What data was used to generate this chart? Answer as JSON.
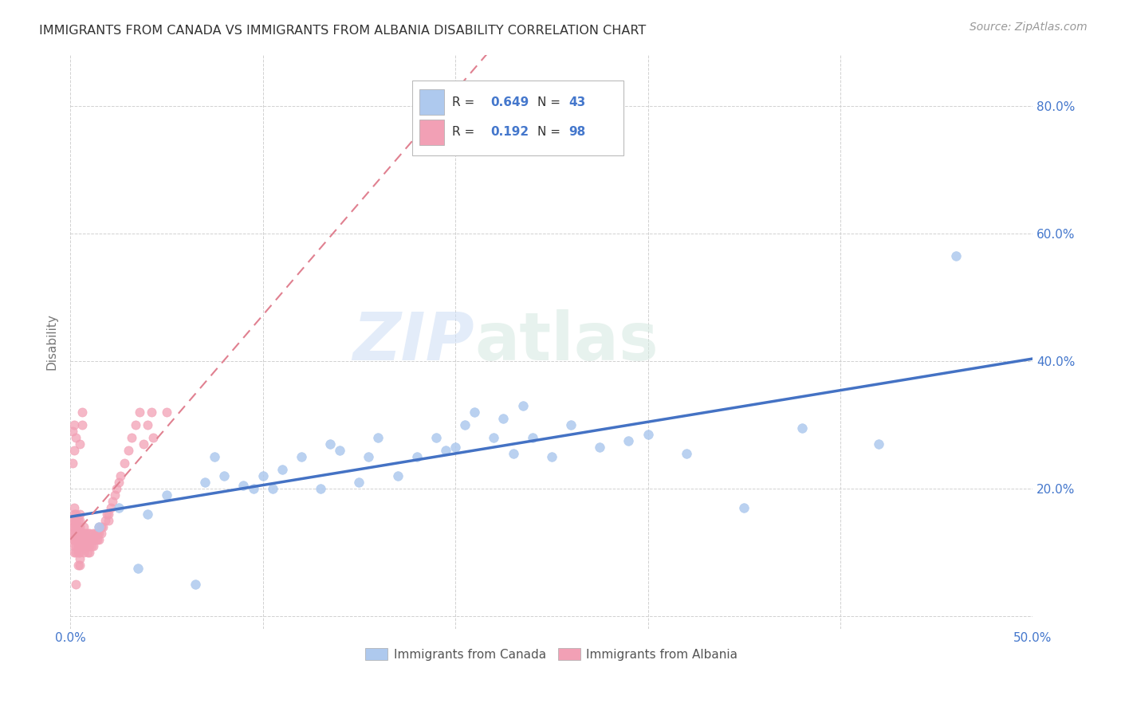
{
  "title": "IMMIGRANTS FROM CANADA VS IMMIGRANTS FROM ALBANIA DISABILITY CORRELATION CHART",
  "source": "Source: ZipAtlas.com",
  "ylabel": "Disability",
  "xlim": [
    0.0,
    0.5
  ],
  "ylim": [
    -0.02,
    0.88
  ],
  "xticks": [
    0.0,
    0.1,
    0.2,
    0.3,
    0.4,
    0.5
  ],
  "yticks": [
    0.0,
    0.2,
    0.4,
    0.6,
    0.8
  ],
  "xtick_labels_left": [
    "0.0%",
    "",
    "",
    "",
    "",
    "50.0%"
  ],
  "ytick_labels_right": [
    "",
    "20.0%",
    "40.0%",
    "60.0%",
    "80.0%"
  ],
  "canada_color": "#aec9ee",
  "albania_color": "#f2a0b5",
  "canada_R": 0.649,
  "canada_N": 43,
  "albania_R": 0.192,
  "albania_N": 98,
  "canada_line_color": "#4472c4",
  "albania_line_color": "#e08090",
  "watermark_zip": "ZIP",
  "watermark_atlas": "atlas",
  "canada_scatter_x": [
    0.015,
    0.025,
    0.035,
    0.04,
    0.05,
    0.065,
    0.07,
    0.075,
    0.08,
    0.09,
    0.095,
    0.1,
    0.105,
    0.11,
    0.12,
    0.13,
    0.135,
    0.14,
    0.15,
    0.155,
    0.16,
    0.17,
    0.18,
    0.19,
    0.195,
    0.2,
    0.205,
    0.21,
    0.22,
    0.225,
    0.23,
    0.235,
    0.24,
    0.25,
    0.26,
    0.275,
    0.29,
    0.3,
    0.32,
    0.35,
    0.38,
    0.42,
    0.46
  ],
  "canada_scatter_y": [
    0.14,
    0.17,
    0.075,
    0.16,
    0.19,
    0.05,
    0.21,
    0.25,
    0.22,
    0.205,
    0.2,
    0.22,
    0.2,
    0.23,
    0.25,
    0.2,
    0.27,
    0.26,
    0.21,
    0.25,
    0.28,
    0.22,
    0.25,
    0.28,
    0.26,
    0.265,
    0.3,
    0.32,
    0.28,
    0.31,
    0.255,
    0.33,
    0.28,
    0.25,
    0.3,
    0.265,
    0.275,
    0.285,
    0.255,
    0.17,
    0.295,
    0.27,
    0.565
  ],
  "albania_scatter_x": [
    0.001,
    0.001,
    0.001,
    0.001,
    0.002,
    0.002,
    0.002,
    0.002,
    0.002,
    0.002,
    0.002,
    0.002,
    0.003,
    0.003,
    0.003,
    0.003,
    0.003,
    0.003,
    0.003,
    0.004,
    0.004,
    0.004,
    0.004,
    0.004,
    0.005,
    0.005,
    0.005,
    0.005,
    0.005,
    0.005,
    0.005,
    0.005,
    0.005,
    0.006,
    0.006,
    0.006,
    0.007,
    0.007,
    0.007,
    0.007,
    0.007,
    0.008,
    0.008,
    0.008,
    0.009,
    0.009,
    0.009,
    0.009,
    0.01,
    0.01,
    0.01,
    0.01,
    0.011,
    0.011,
    0.012,
    0.012,
    0.012,
    0.013,
    0.013,
    0.014,
    0.014,
    0.015,
    0.015,
    0.015,
    0.016,
    0.016,
    0.017,
    0.018,
    0.019,
    0.02,
    0.02,
    0.021,
    0.022,
    0.023,
    0.024,
    0.025,
    0.026,
    0.028,
    0.03,
    0.032,
    0.034,
    0.036,
    0.038,
    0.04,
    0.042,
    0.043,
    0.001,
    0.001,
    0.002,
    0.002,
    0.003,
    0.004,
    0.005,
    0.006,
    0.003,
    0.004,
    0.006,
    0.05
  ],
  "albania_scatter_y": [
    0.12,
    0.13,
    0.14,
    0.15,
    0.1,
    0.11,
    0.12,
    0.13,
    0.14,
    0.15,
    0.16,
    0.17,
    0.1,
    0.11,
    0.12,
    0.13,
    0.14,
    0.15,
    0.16,
    0.11,
    0.12,
    0.13,
    0.14,
    0.15,
    0.08,
    0.09,
    0.1,
    0.11,
    0.12,
    0.13,
    0.14,
    0.15,
    0.16,
    0.11,
    0.12,
    0.13,
    0.1,
    0.11,
    0.12,
    0.13,
    0.14,
    0.11,
    0.12,
    0.13,
    0.1,
    0.11,
    0.12,
    0.13,
    0.1,
    0.11,
    0.12,
    0.13,
    0.11,
    0.12,
    0.11,
    0.12,
    0.13,
    0.12,
    0.13,
    0.12,
    0.13,
    0.12,
    0.13,
    0.14,
    0.13,
    0.14,
    0.14,
    0.15,
    0.16,
    0.15,
    0.16,
    0.17,
    0.18,
    0.19,
    0.2,
    0.21,
    0.22,
    0.24,
    0.26,
    0.28,
    0.3,
    0.32,
    0.27,
    0.3,
    0.32,
    0.28,
    0.29,
    0.24,
    0.3,
    0.26,
    0.28,
    0.1,
    0.27,
    0.3,
    0.05,
    0.08,
    0.32,
    0.32
  ]
}
